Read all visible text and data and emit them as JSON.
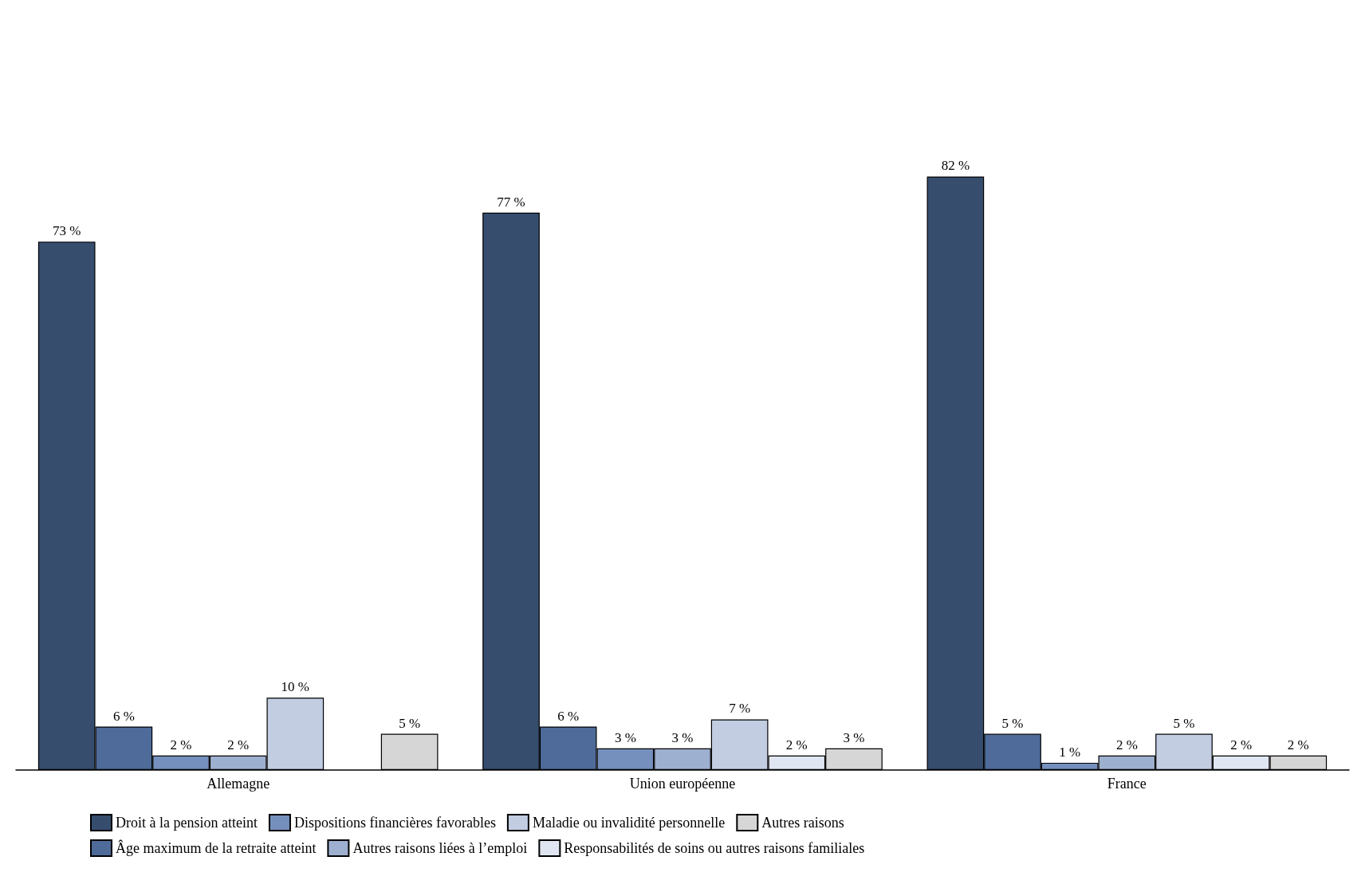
{
  "chart_data": {
    "type": "bar",
    "categories": [
      "Allemagne",
      "Union européenne",
      "France"
    ],
    "legend": "bottom",
    "series": [
      {
        "name": "Droit à la pension atteint",
        "color": "#364d6e",
        "values": [
          73,
          77,
          82
        ],
        "value_labels": [
          "73 %",
          "77 %",
          "82 %"
        ]
      },
      {
        "name": "Âge maximum de la retraite atteint",
        "color": "#4e6b9a",
        "values": [
          6,
          6,
          5
        ],
        "value_labels": [
          "6 %",
          "6 %",
          "5 %"
        ]
      },
      {
        "name": "Dispositions financières favorables",
        "color": "#7590bd",
        "values": [
          2,
          3,
          1
        ],
        "value_labels": [
          "2 %",
          "3 %",
          "1 %"
        ]
      },
      {
        "name": "Autres raisons liées à l’emploi",
        "color": "#9eb0cf",
        "values": [
          2,
          3,
          2
        ],
        "value_labels": [
          "2 %",
          "3 %",
          "2 %"
        ]
      },
      {
        "name": "Maladie ou invalidité personnelle",
        "color": "#c2cde2",
        "values": [
          10,
          7,
          5
        ],
        "value_labels": [
          "10 %",
          "7 %",
          "5 %"
        ]
      },
      {
        "name": "Responsabilités de soins ou autres raisons familiales",
        "color": "#e0e6f1",
        "values": [
          null,
          2,
          2
        ],
        "value_labels": [
          null,
          "2 %",
          "2 %"
        ]
      },
      {
        "name": "Autres raisons",
        "color": "#d6d6d6",
        "values": [
          5,
          3,
          2
        ],
        "value_labels": [
          "5 %",
          "3 %",
          "2 %"
        ]
      }
    ]
  }
}
